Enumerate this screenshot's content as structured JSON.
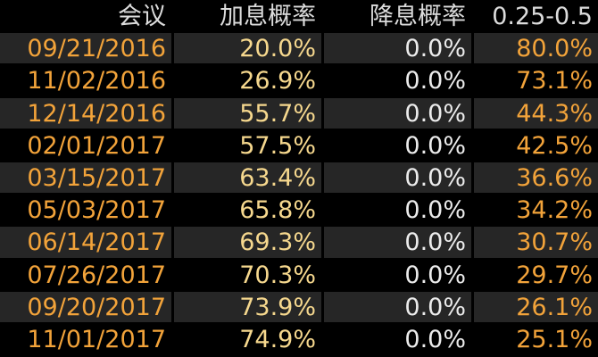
{
  "table": {
    "header": [
      "会议",
      "加息概率",
      "降息概率",
      "0.25-0.5"
    ],
    "rows": [
      [
        "09/21/2016",
        "20.0%",
        "0.0%",
        "80.0%"
      ],
      [
        "11/02/2016",
        "26.9%",
        "0.0%",
        "73.1%"
      ],
      [
        "12/14/2016",
        "55.7%",
        "0.0%",
        "44.3%"
      ],
      [
        "02/01/2017",
        "57.5%",
        "0.0%",
        "42.5%"
      ],
      [
        "03/15/2017",
        "63.4%",
        "0.0%",
        "36.6%"
      ],
      [
        "05/03/2017",
        "65.8%",
        "0.0%",
        "34.2%"
      ],
      [
        "06/14/2017",
        "69.3%",
        "0.0%",
        "30.7%"
      ],
      [
        "07/26/2017",
        "70.3%",
        "0.0%",
        "29.7%"
      ],
      [
        "09/20/2017",
        "73.9%",
        "0.0%",
        "26.1%"
      ],
      [
        "11/01/2017",
        "74.9%",
        "0.0%",
        "25.1%"
      ]
    ]
  }
}
